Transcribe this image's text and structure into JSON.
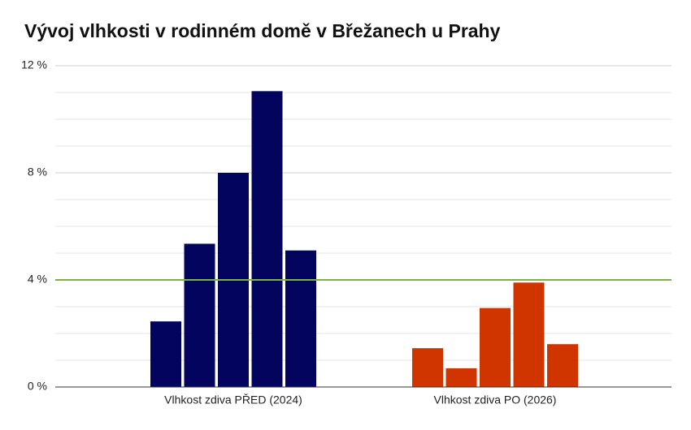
{
  "chart_data": {
    "type": "bar",
    "title": "Vývoj vlhkosti v rodinném domě v Břežanech u Prahy",
    "categories": [
      "Vlhkost zdiva PŘED (2024)",
      "Vlhkost zdiva PO (2026)"
    ],
    "groups": [
      {
        "color": "#03045e",
        "values": [
          2.45,
          5.35,
          8,
          11.05,
          5.1
        ]
      },
      {
        "color": "#d03500",
        "values": [
          1.45,
          0.7,
          2.95,
          3.9,
          1.6
        ]
      }
    ],
    "ylim": [
      0,
      12
    ],
    "yticks": [
      {
        "value": 0,
        "label": "0 %"
      },
      {
        "value": 4,
        "label": "4 %"
      },
      {
        "value": 8,
        "label": "8 %"
      },
      {
        "value": 12,
        "label": "12 %"
      }
    ],
    "minor_yticks": [
      1,
      2,
      3,
      5,
      6,
      7,
      9,
      10,
      11
    ],
    "reference_line": {
      "value": 4,
      "color": "#7cb342"
    },
    "grid": true
  }
}
